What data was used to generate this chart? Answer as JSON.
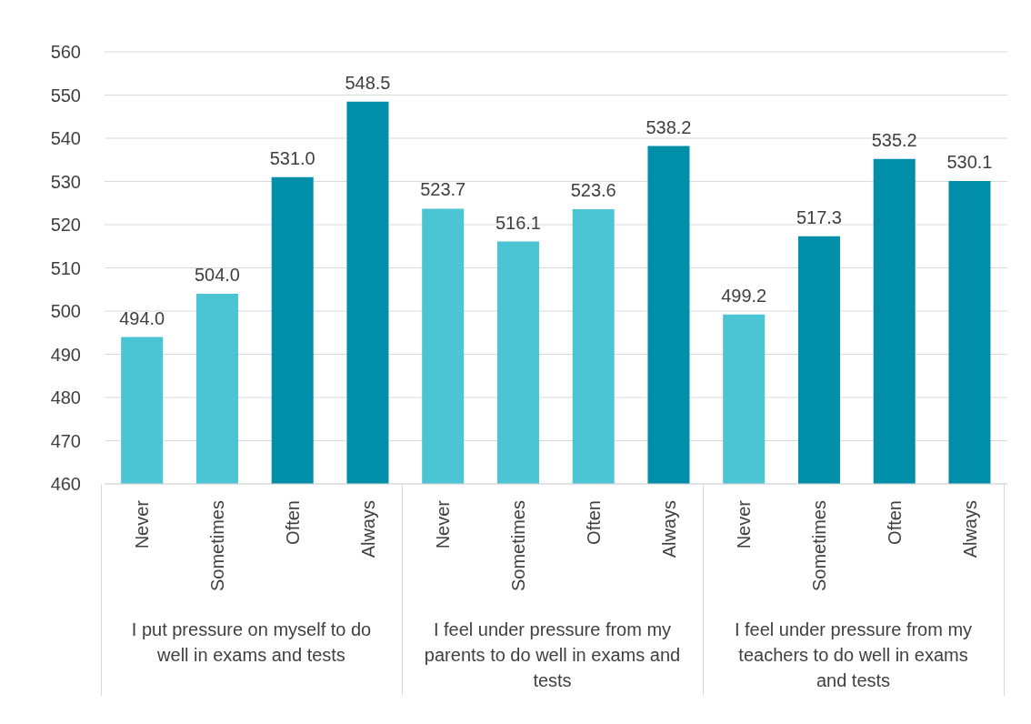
{
  "chart_data": {
    "type": "bar",
    "categories": [
      "Never",
      "Sometimes",
      "Often",
      "Always",
      "Never",
      "Sometimes",
      "Often",
      "Always",
      "Never",
      "Sometimes",
      "Often",
      "Always"
    ],
    "values": [
      494.0,
      504.0,
      531.0,
      548.5,
      523.7,
      516.1,
      523.6,
      538.2,
      499.2,
      517.3,
      535.2,
      530.1
    ],
    "colors": [
      "#4bc4d3",
      "#4bc4d3",
      "#008ea8",
      "#008ea8",
      "#4bc4d3",
      "#4bc4d3",
      "#4bc4d3",
      "#008ea8",
      "#4bc4d3",
      "#008ea8",
      "#008ea8",
      "#008ea8"
    ],
    "value_labels": [
      "494.0",
      "504.0",
      "531.0",
      "548.5",
      "523.7",
      "516.1",
      "523.6",
      "538.2",
      "499.2",
      "517.3",
      "535.2",
      "530.1"
    ],
    "annotations": [
      "I put pressure on myself to do well in exams and tests",
      "I feel under pressure from my parents to do well in exams and tests",
      "I feel under pressure from my teachers to do well in exams and tests"
    ],
    "ylim": [
      460,
      560
    ],
    "yticks": [
      460,
      470,
      480,
      490,
      500,
      510,
      520,
      530,
      540,
      550,
      560
    ],
    "grid": "y"
  }
}
